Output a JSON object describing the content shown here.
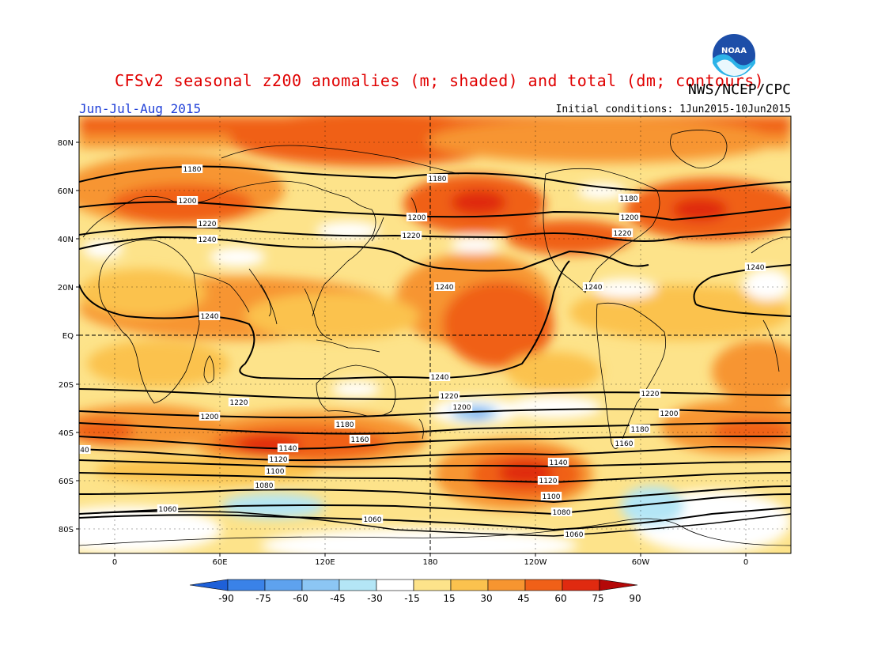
{
  "title": "CFSv2 seasonal z200 anomalies (m; shaded) and total (dm; contours)",
  "organization": "NWS/NCEP/CPC",
  "logo_text": "NOAA",
  "period": "Jun-Jul-Aug 2015",
  "initial_conditions": "Initial conditions: 1Jun2015-10Jun2015",
  "lat_labels": [
    "80N",
    "60N",
    "40N",
    "20N",
    "EQ",
    "20S",
    "40S",
    "60S",
    "80S"
  ],
  "lon_labels": [
    "0",
    "60E",
    "120E",
    "180",
    "120W",
    "60W",
    "0"
  ],
  "colorbar": {
    "labels": [
      "-90",
      "-75",
      "-60",
      "-45",
      "-30",
      "-15",
      "15",
      "30",
      "45",
      "60",
      "75",
      "90"
    ],
    "colors": [
      "#1e60d8",
      "#3a82e8",
      "#5ea2ee",
      "#8cc6f4",
      "#b4e6f6",
      "#ffffff",
      "#fde38a",
      "#fbc24e",
      "#f79530",
      "#f06018",
      "#e02a10",
      "#b40808"
    ]
  },
  "contour_labels": [
    "1180",
    "1200",
    "1220",
    "1240",
    "1240",
    "1180",
    "1200",
    "1220",
    "1240",
    "1180",
    "1200",
    "1220",
    "1240",
    "1240",
    "1240",
    "1220",
    "1200",
    "1180",
    "1160",
    "1140",
    "1120",
    "1100",
    "1080",
    "1060",
    "1060",
    "1220",
    "1200",
    "1140",
    "1120",
    "1100",
    "1220",
    "1200",
    "1180",
    "1160",
    "1080",
    "1060",
    "40"
  ]
}
